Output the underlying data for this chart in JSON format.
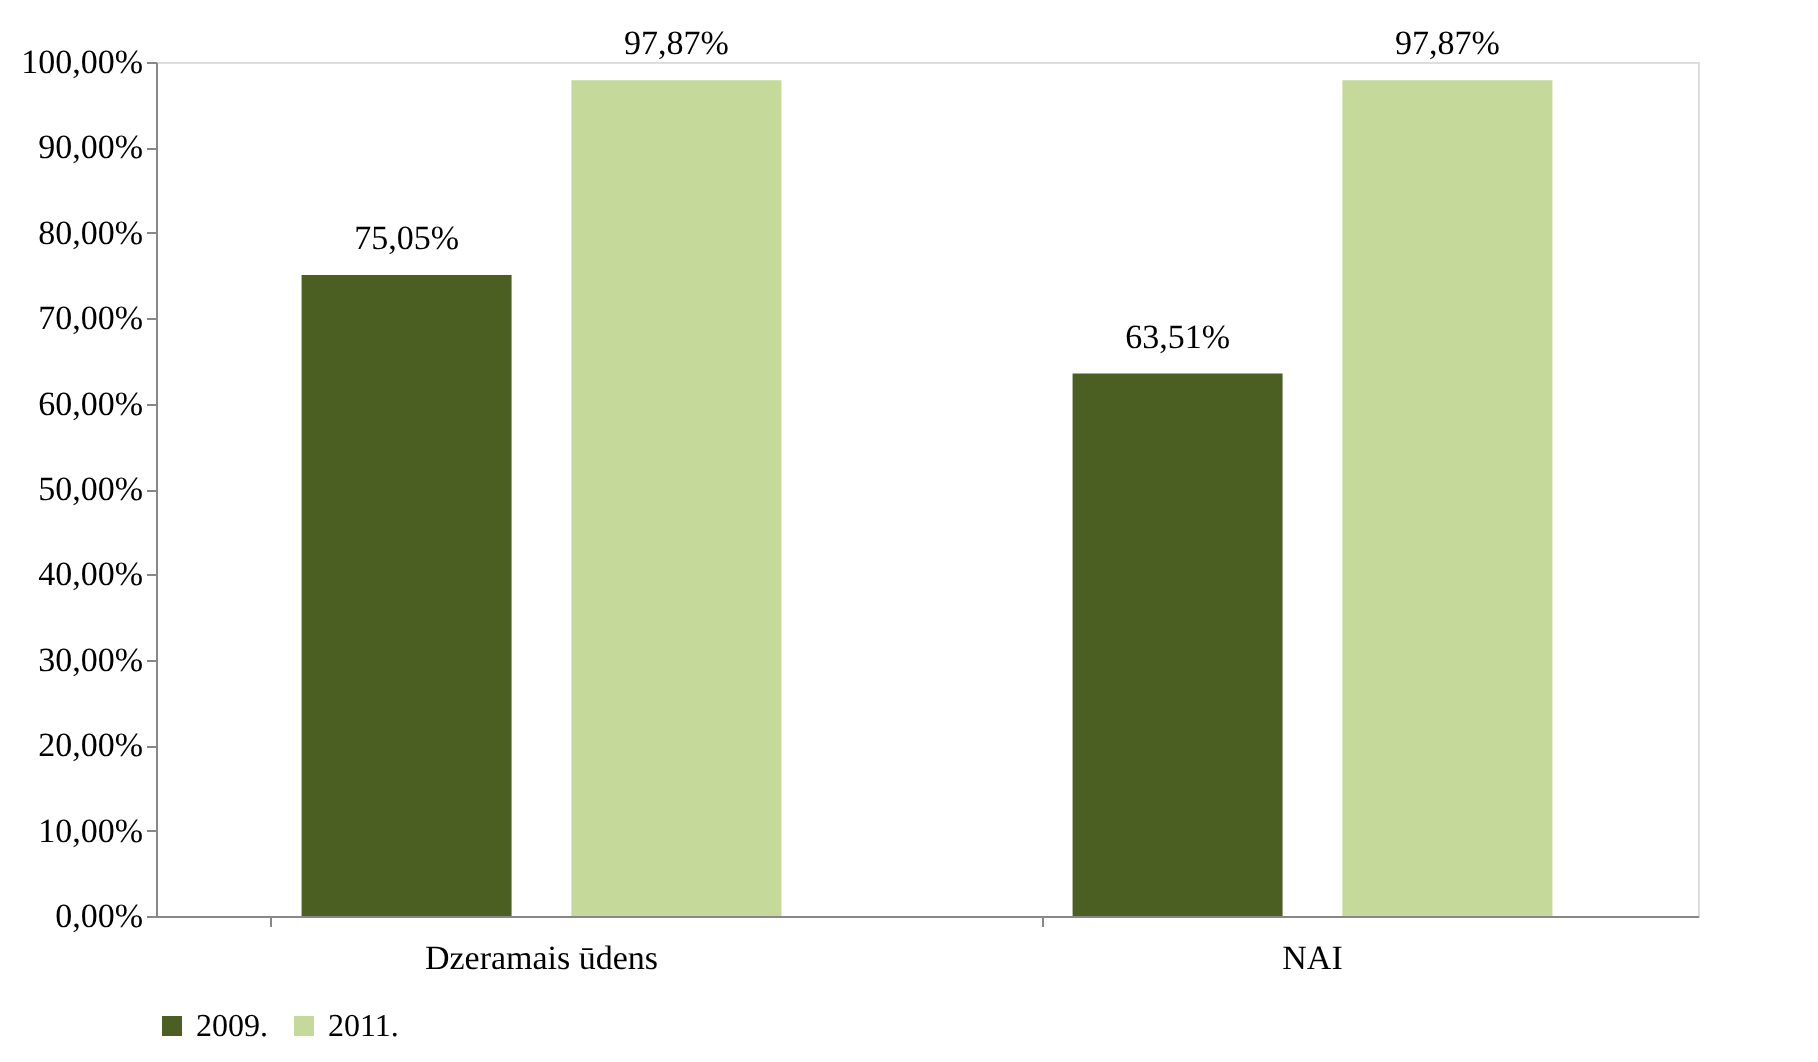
{
  "chart_data": {
    "type": "bar",
    "categories": [
      "Dzeramais ūdens",
      "NAI"
    ],
    "series": [
      {
        "name": "2009.",
        "color": "#4b5f22",
        "values": [
          75.05,
          63.51
        ],
        "value_labels": [
          "75,05%",
          "63,51%"
        ]
      },
      {
        "name": "2011.",
        "color": "#c5d99a",
        "values": [
          97.87,
          97.87
        ],
        "value_labels": [
          "97,87%",
          "97,87%"
        ]
      }
    ],
    "ylim": [
      0,
      100
    ],
    "yticks": [
      {
        "value": 0,
        "label": "0,00%"
      },
      {
        "value": 10,
        "label": "10,00%"
      },
      {
        "value": 20,
        "label": "20,00%"
      },
      {
        "value": 30,
        "label": "30,00%"
      },
      {
        "value": 40,
        "label": "40,00%"
      },
      {
        "value": 50,
        "label": "50,00%"
      },
      {
        "value": 60,
        "label": "60,00%"
      },
      {
        "value": 70,
        "label": "70,00%"
      },
      {
        "value": 80,
        "label": "80,00%"
      },
      {
        "value": 90,
        "label": "90,00%"
      },
      {
        "value": 100,
        "label": "100,00%"
      }
    ],
    "grid": false,
    "legend": "bottom"
  }
}
